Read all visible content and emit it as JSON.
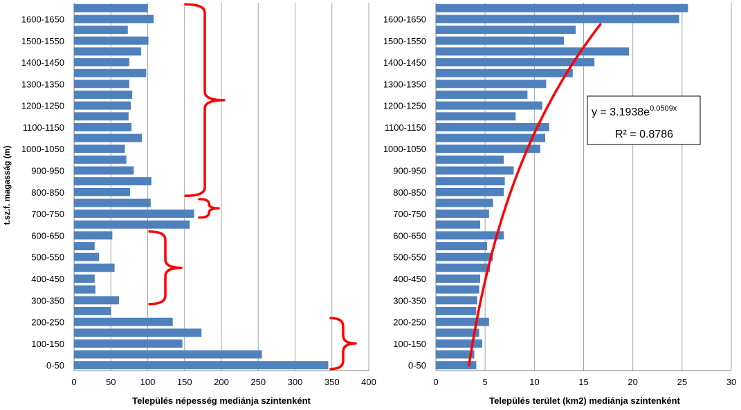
{
  "chart_data": [
    {
      "type": "bar",
      "orientation": "horizontal",
      "categories": [
        "0-50",
        "50-100",
        "100-150",
        "150-200",
        "200-250",
        "250-300",
        "300-350",
        "350-400",
        "400-450",
        "450-500",
        "500-550",
        "550-600",
        "600-650",
        "650-700",
        "700-750",
        "750-800",
        "800-850",
        "850-900",
        "900-950",
        "950-1000",
        "1000-1050",
        "1050-1100",
        "1100-1150",
        "1150-1200",
        "1200-1250",
        "1250-1300",
        "1300-1350",
        "1350-1400",
        "1400-1450",
        "1450-1500",
        "1500-1550",
        "1550-1600",
        "1600-1650",
        "1650-1700"
      ],
      "tick_labels": [
        "0-50",
        "100-150",
        "200-250",
        "300-350",
        "400-450",
        "500-550",
        "600-650",
        "700-750",
        "800-850",
        "900-950",
        "1000-1050",
        "1100-1150",
        "1200-1250",
        "1300-1350",
        "1400-1450",
        "1500-1550",
        "1600-1650"
      ],
      "values": [
        345,
        255,
        147,
        173,
        134,
        50,
        61,
        29,
        28,
        55,
        34,
        28,
        52,
        157,
        163,
        104,
        76,
        105,
        81,
        71,
        69,
        92,
        78,
        74,
        77,
        79,
        75,
        98,
        75,
        91,
        101,
        73,
        108,
        100
      ],
      "xlabel": "Település népesség mediánja szintenként",
      "ylabel": "t.sz.f. magasság (m)",
      "xlim": [
        0,
        400
      ],
      "xticks": [
        0,
        50,
        100,
        150,
        200,
        250,
        300,
        350,
        400
      ],
      "grid": "vertical",
      "color": "#4f81bd",
      "annotations": [
        {
          "type": "brace",
          "color": "#ff0000",
          "from_category": "0-50",
          "to_category": "200-250"
        },
        {
          "type": "brace",
          "color": "#ff0000",
          "from_category": "300-350",
          "to_category": "600-650"
        },
        {
          "type": "brace",
          "color": "#ff0000",
          "from_category": "700-750",
          "to_category": "750-800"
        },
        {
          "type": "brace",
          "color": "#ff0000",
          "from_category": "800-850",
          "to_category": "1650-1700"
        }
      ]
    },
    {
      "type": "bar",
      "orientation": "horizontal",
      "categories": [
        "0-50",
        "50-100",
        "100-150",
        "150-200",
        "200-250",
        "250-300",
        "300-350",
        "350-400",
        "400-450",
        "450-500",
        "500-550",
        "550-600",
        "600-650",
        "650-700",
        "700-750",
        "750-800",
        "800-850",
        "850-900",
        "900-950",
        "950-1000",
        "1000-1050",
        "1050-1100",
        "1100-1150",
        "1150-1200",
        "1200-1250",
        "1250-1300",
        "1300-1350",
        "1350-1400",
        "1400-1450",
        "1450-1500",
        "1500-1550",
        "1550-1600",
        "1600-1650",
        "1650-1700"
      ],
      "tick_labels": [
        "0-50",
        "100-150",
        "200-250",
        "300-350",
        "400-450",
        "500-550",
        "600-650",
        "700-750",
        "800-850",
        "900-950",
        "1000-1050",
        "1100-1150",
        "1200-1250",
        "1300-1350",
        "1400-1450",
        "1500-1550",
        "1600-1650"
      ],
      "values": [
        4.1,
        3.9,
        4.7,
        4.4,
        5.4,
        4.1,
        4.2,
        4.4,
        4.5,
        5.5,
        5.8,
        5.2,
        6.9,
        4.5,
        5.4,
        5.8,
        6.9,
        7.0,
        7.9,
        6.9,
        10.6,
        11.1,
        11.5,
        8.1,
        10.8,
        9.3,
        11.2,
        13.9,
        16.1,
        19.6,
        13.0,
        14.2,
        24.7,
        25.6
      ],
      "xlabel": "Település terület (km2) mediánja szintenként",
      "xlim": [
        0,
        30
      ],
      "xticks": [
        0,
        5,
        10,
        15,
        20,
        25,
        30
      ],
      "grid": "vertical",
      "color": "#4f81bd",
      "trendline": {
        "type": "exponential",
        "coefficient": 3.1938,
        "rate": 0.0509,
        "r_squared": 0.8786,
        "color": "#ff0000",
        "equation_base": "y = 3.1938e",
        "equation_exponent": "0.0509x",
        "r2_text": "R² = 0.8786"
      }
    }
  ]
}
